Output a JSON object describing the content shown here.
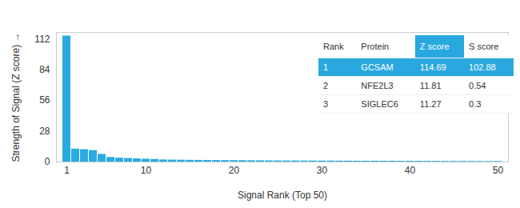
{
  "chart_data": {
    "type": "bar",
    "x_label": "Signal Rank (Top 50)",
    "y_label": "Strength of Signal (Z score)",
    "categories": [
      1,
      2,
      3,
      4,
      5,
      6,
      7,
      8,
      9,
      10,
      11,
      12,
      13,
      14,
      15,
      16,
      17,
      18,
      19,
      20,
      21,
      22,
      23,
      24,
      25,
      26,
      27,
      28,
      29,
      30,
      31,
      32,
      33,
      34,
      35,
      36,
      37,
      38,
      39,
      40,
      41,
      42,
      43,
      44,
      45,
      46,
      47,
      48,
      49,
      50
    ],
    "values": [
      114.69,
      11.81,
      11.27,
      10.5,
      7.0,
      4.2,
      3.6,
      3.2,
      2.9,
      2.6,
      2.4,
      1.9,
      1.8,
      1.7,
      1.6,
      1.5,
      1.45,
      1.4,
      1.35,
      1.3,
      1.25,
      1.2,
      1.15,
      1.1,
      1.05,
      1.0,
      1.0,
      0.95,
      0.95,
      0.9,
      0.9,
      0.85,
      0.85,
      0.8,
      0.8,
      0.8,
      0.75,
      0.75,
      0.7,
      0.7,
      0.7,
      0.65,
      0.65,
      0.6,
      0.6,
      0.6,
      0.55,
      0.55,
      0.5,
      0.5
    ],
    "color": "#29abe2",
    "ylim": [
      0,
      118
    ],
    "yticks": [
      0,
      28,
      56,
      84,
      112
    ],
    "xticks": [
      1,
      10,
      20,
      30,
      40,
      50
    ],
    "grid": false,
    "table": {
      "columns": [
        "Rank",
        "Protein",
        "Z score",
        "S score"
      ],
      "rows": [
        [
          "1",
          "GCSAM",
          "114.69",
          "102.88"
        ],
        [
          "2",
          "NFE2L3",
          "11.81",
          "0.54"
        ],
        [
          "3",
          "SIGLEC6",
          "11.27",
          "0.3"
        ]
      ]
    }
  }
}
